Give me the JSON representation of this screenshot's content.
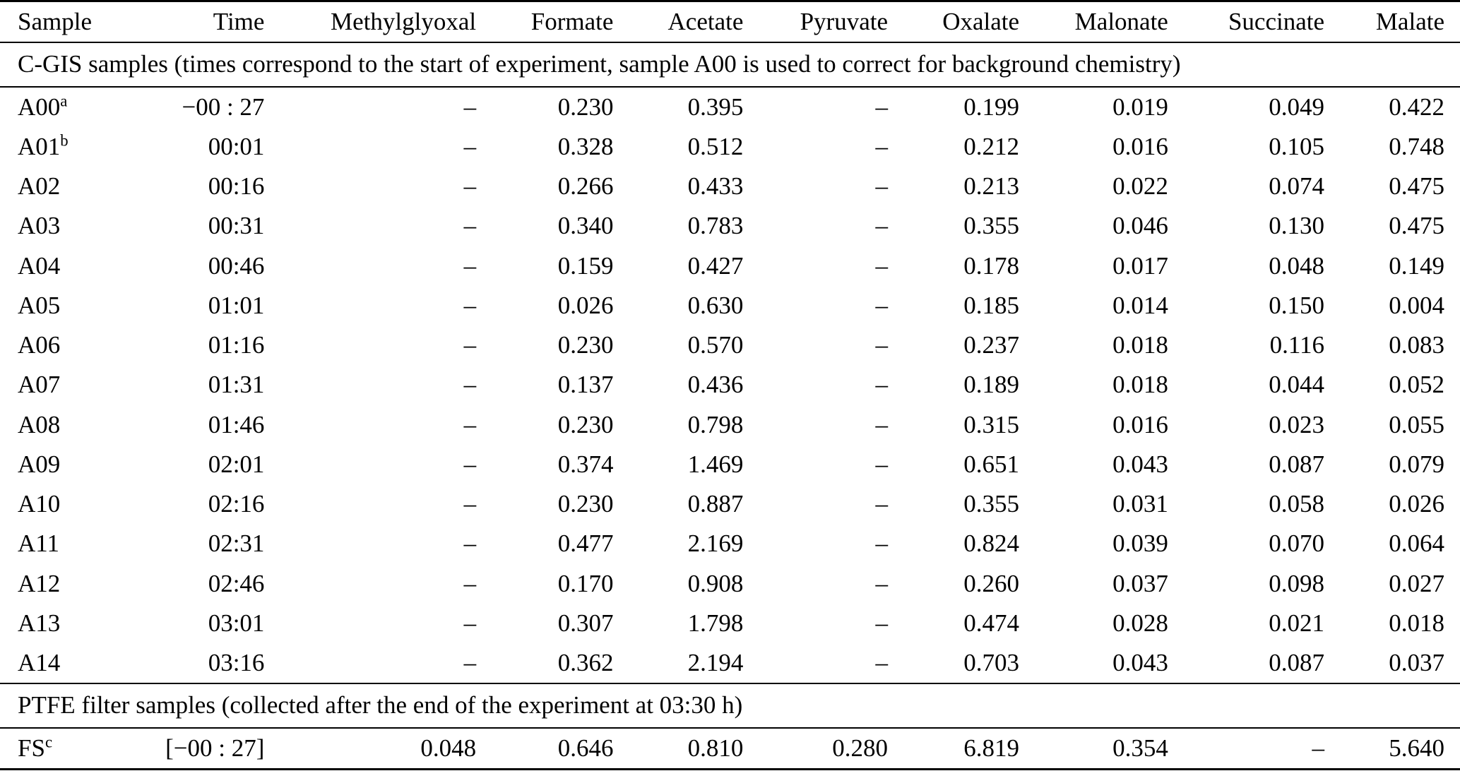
{
  "table": {
    "columns": [
      "Sample",
      "Time",
      "Methylglyoxal",
      "Formate",
      "Acetate",
      "Pyruvate",
      "Oxalate",
      "Malonate",
      "Succinate",
      "Malate"
    ],
    "column_widths": [
      "9%",
      "9.6%",
      "14.5%",
      "9.4%",
      "8.9%",
      "9.9%",
      "9%",
      "10.2%",
      "10.7%",
      "8.8%"
    ],
    "sections": [
      {
        "header": "C-GIS samples (times correspond to the start of experiment, sample A00 is used to correct for background chemistry)",
        "rows": [
          {
            "sample": "A00",
            "sup": "a",
            "cells": [
              "−00 : 27",
              "–",
              "0.230",
              "0.395",
              "–",
              "0.199",
              "0.019",
              "0.049",
              "0.422"
            ]
          },
          {
            "sample": "A01",
            "sup": "b",
            "cells": [
              "00:01",
              "–",
              "0.328",
              "0.512",
              "–",
              "0.212",
              "0.016",
              "0.105",
              "0.748"
            ]
          },
          {
            "sample": "A02",
            "sup": "",
            "cells": [
              "00:16",
              "–",
              "0.266",
              "0.433",
              "–",
              "0.213",
              "0.022",
              "0.074",
              "0.475"
            ]
          },
          {
            "sample": "A03",
            "sup": "",
            "cells": [
              "00:31",
              "–",
              "0.340",
              "0.783",
              "–",
              "0.355",
              "0.046",
              "0.130",
              "0.475"
            ]
          },
          {
            "sample": "A04",
            "sup": "",
            "cells": [
              "00:46",
              "–",
              "0.159",
              "0.427",
              "–",
              "0.178",
              "0.017",
              "0.048",
              "0.149"
            ]
          },
          {
            "sample": "A05",
            "sup": "",
            "cells": [
              "01:01",
              "–",
              "0.026",
              "0.630",
              "–",
              "0.185",
              "0.014",
              "0.150",
              "0.004"
            ]
          },
          {
            "sample": "A06",
            "sup": "",
            "cells": [
              "01:16",
              "–",
              "0.230",
              "0.570",
              "–",
              "0.237",
              "0.018",
              "0.116",
              "0.083"
            ]
          },
          {
            "sample": "A07",
            "sup": "",
            "cells": [
              "01:31",
              "–",
              "0.137",
              "0.436",
              "–",
              "0.189",
              "0.018",
              "0.044",
              "0.052"
            ]
          },
          {
            "sample": "A08",
            "sup": "",
            "cells": [
              "01:46",
              "–",
              "0.230",
              "0.798",
              "–",
              "0.315",
              "0.016",
              "0.023",
              "0.055"
            ]
          },
          {
            "sample": "A09",
            "sup": "",
            "cells": [
              "02:01",
              "–",
              "0.374",
              "1.469",
              "–",
              "0.651",
              "0.043",
              "0.087",
              "0.079"
            ]
          },
          {
            "sample": "A10",
            "sup": "",
            "cells": [
              "02:16",
              "–",
              "0.230",
              "0.887",
              "–",
              "0.355",
              "0.031",
              "0.058",
              "0.026"
            ]
          },
          {
            "sample": "A11",
            "sup": "",
            "cells": [
              "02:31",
              "–",
              "0.477",
              "2.169",
              "–",
              "0.824",
              "0.039",
              "0.070",
              "0.064"
            ]
          },
          {
            "sample": "A12",
            "sup": "",
            "cells": [
              "02:46",
              "–",
              "0.170",
              "0.908",
              "–",
              "0.260",
              "0.037",
              "0.098",
              "0.027"
            ]
          },
          {
            "sample": "A13",
            "sup": "",
            "cells": [
              "03:01",
              "–",
              "0.307",
              "1.798",
              "–",
              "0.474",
              "0.028",
              "0.021",
              "0.018"
            ]
          },
          {
            "sample": "A14",
            "sup": "",
            "cells": [
              "03:16",
              "–",
              "0.362",
              "2.194",
              "–",
              "0.703",
              "0.043",
              "0.087",
              "0.037"
            ]
          }
        ]
      },
      {
        "header": "PTFE filter samples (collected after the end of the experiment at 03:30 h)",
        "rows": [
          {
            "sample": "FS",
            "sup": "c",
            "cells": [
              "[−00 : 27]",
              "0.048",
              "0.646",
              "0.810",
              "0.280",
              "6.819",
              "0.354",
              "–",
              "5.640"
            ]
          }
        ]
      }
    ]
  }
}
